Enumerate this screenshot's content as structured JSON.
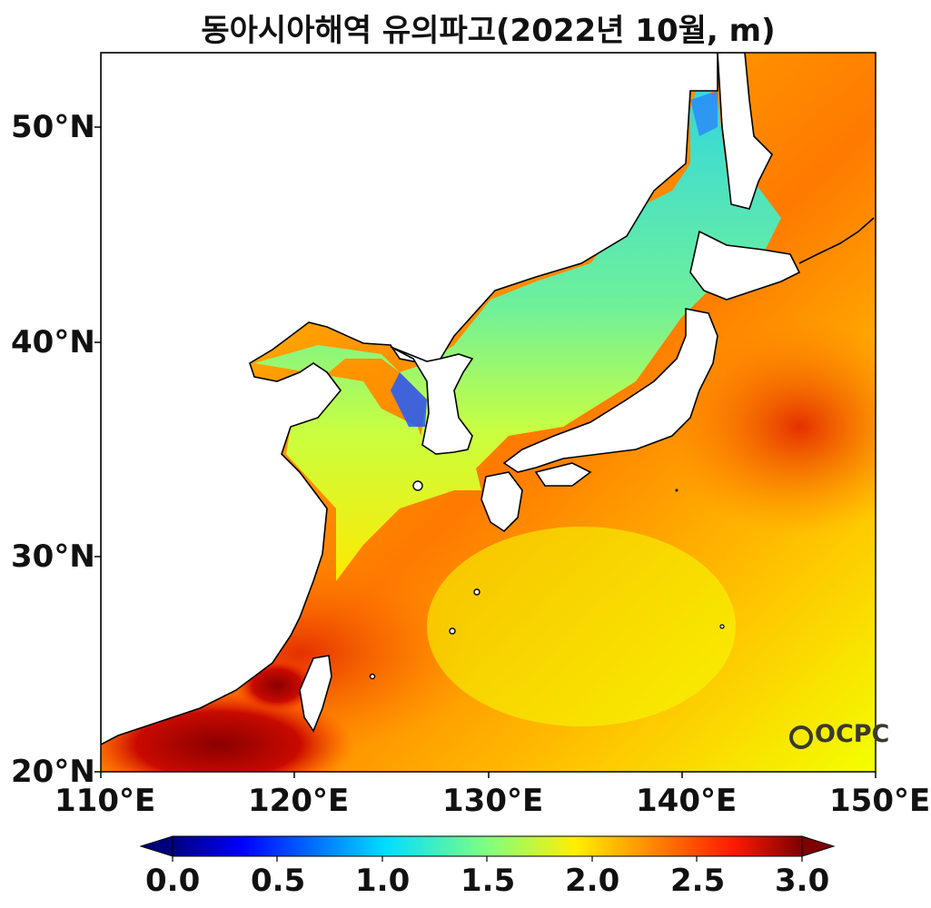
{
  "title": "동아시아해역 유의파고(2022년 10월, m)",
  "logo_text": "OCPC",
  "axes": {
    "lat_ticks": [
      "50°N",
      "40°N",
      "30°N",
      "20°N"
    ],
    "lon_ticks": [
      "110°E",
      "120°E",
      "130°E",
      "140°E",
      "150°E"
    ],
    "lat_range": [
      20,
      53.5
    ],
    "lon_range": [
      110,
      150
    ]
  },
  "colorbar": {
    "ticks": [
      "0.0",
      "0.5",
      "1.0",
      "1.5",
      "2.0",
      "2.5",
      "3.0"
    ],
    "range": [
      0,
      3
    ],
    "colormap": "jet",
    "extend": "both"
  },
  "colors": {
    "land": "#ffffff",
    "coast": "#000000",
    "sea_low": "#1e6cff",
    "sea_mid": "#5ff0b0",
    "sea_high": "#e53000",
    "sea_max": "#8b0000"
  }
}
